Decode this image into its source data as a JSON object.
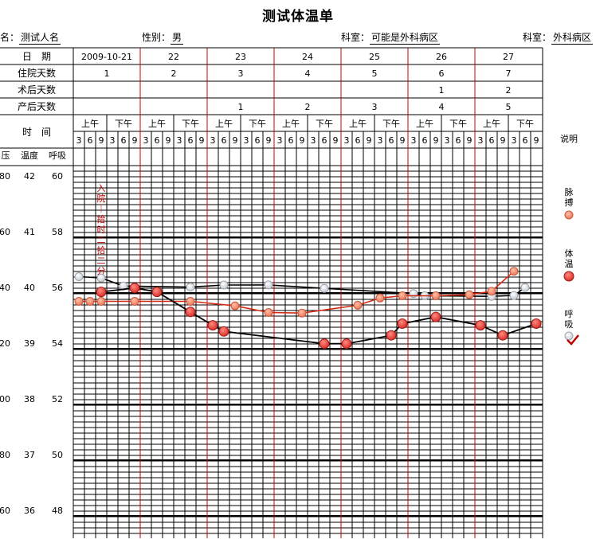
{
  "title": "测试体温单",
  "patient": {
    "name_label": "名：",
    "name_value": "测试人名",
    "gender_label": "性别：",
    "gender_value": "男",
    "dept1_label": "科室：",
    "dept1_value": "可能是外科病区",
    "dept2_label": "科室：",
    "dept2_value": "外科病区"
  },
  "header_rows": {
    "date_label": "日　期",
    "days_in_label": "住院天数",
    "post_op_label": "术后天数",
    "postpartum_label": "产后天数",
    "time_label": "时　间",
    "am": "上午",
    "pm": "下午",
    "hours": [
      "3",
      "6",
      "9",
      "3",
      "6",
      "9"
    ]
  },
  "days": [
    {
      "date": "2009-10-21",
      "in_days": "1",
      "post_op": "",
      "postpartum": ""
    },
    {
      "date": "22",
      "in_days": "2",
      "post_op": "",
      "postpartum": ""
    },
    {
      "date": "23",
      "in_days": "3",
      "post_op": "",
      "postpartum": "1"
    },
    {
      "date": "24",
      "in_days": "4",
      "post_op": "",
      "postpartum": "2"
    },
    {
      "date": "25",
      "in_days": "5",
      "post_op": "",
      "postpartum": "3"
    },
    {
      "date": "26",
      "in_days": "6",
      "post_op": "1",
      "postpartum": "4"
    },
    {
      "date": "27",
      "in_days": "7",
      "post_op": "2",
      "postpartum": "5"
    }
  ],
  "axis_headers": {
    "bp": "压",
    "temp": "温度",
    "resp": "呼吸"
  },
  "axis_ticks": [
    {
      "bp": "80",
      "temp": "42",
      "resp": "60"
    },
    {
      "bp": "60",
      "temp": "41",
      "resp": "58"
    },
    {
      "bp": "40",
      "temp": "40",
      "resp": "56"
    },
    {
      "bp": "20",
      "temp": "39",
      "resp": "54"
    },
    {
      "bp": "00",
      "temp": "38",
      "resp": "52"
    },
    {
      "bp": "80",
      "temp": "37",
      "resp": "50"
    },
    {
      "bp": "60",
      "temp": "36",
      "resp": "48"
    }
  ],
  "admission_note": "入院｜拾时二拾二分",
  "legend": {
    "title": "说明",
    "pulse": "脉搏",
    "temp": "体温",
    "resp": "呼吸"
  },
  "colors": {
    "grid": "#000000",
    "day_divider": "#cc0000",
    "pulse": "#e8785a",
    "pulse_line": "#d42a14",
    "temp": "#d8302a",
    "temp_line": "#000000",
    "resp": "#e4e8ec",
    "resp_line": "#000000",
    "note": "#c00000"
  },
  "chart_data": {
    "type": "line",
    "title": "测试体温单",
    "x_unit": "4-hour slot index (0 = 2009-10-21 03:00)",
    "ylim_temp": [
      35.5,
      42.5
    ],
    "ylim_resp": [
      47,
      61
    ],
    "series": [
      {
        "name": "脉搏",
        "values_on_temp_scale": [
          {
            "x": 0,
            "y": 39.85
          },
          {
            "x": 1,
            "y": 39.85
          },
          {
            "x": 2,
            "y": 39.85
          },
          {
            "x": 5,
            "y": 39.85
          },
          {
            "x": 10,
            "y": 39.85
          },
          {
            "x": 14,
            "y": 39.77
          },
          {
            "x": 17,
            "y": 39.65
          },
          {
            "x": 20,
            "y": 39.64
          },
          {
            "x": 25,
            "y": 39.78
          },
          {
            "x": 27,
            "y": 39.91
          },
          {
            "x": 29,
            "y": 39.95
          },
          {
            "x": 32,
            "y": 39.95
          },
          {
            "x": 35,
            "y": 39.97
          },
          {
            "x": 37,
            "y": 40.03
          },
          {
            "x": 39,
            "y": 40.39
          }
        ]
      },
      {
        "name": "体温",
        "values": [
          {
            "x": 2,
            "y": 40.02
          },
          {
            "x": 5,
            "y": 40.09
          },
          {
            "x": 7,
            "y": 40.02
          },
          {
            "x": 10,
            "y": 39.66
          },
          {
            "x": 12,
            "y": 39.42
          },
          {
            "x": 13,
            "y": 39.31
          },
          {
            "x": 22,
            "y": 39.09
          },
          {
            "x": 24,
            "y": 39.09
          },
          {
            "x": 28,
            "y": 39.24
          },
          {
            "x": 29,
            "y": 39.45
          },
          {
            "x": 32,
            "y": 39.57
          },
          {
            "x": 36,
            "y": 39.42
          },
          {
            "x": 38,
            "y": 39.24
          },
          {
            "x": 41,
            "y": 39.45
          }
        ]
      },
      {
        "name": "呼吸",
        "values": [
          {
            "x": 0,
            "y": 53.17
          },
          {
            "x": 2,
            "y": 53.08
          },
          {
            "x": 4,
            "y": 52.5
          },
          {
            "x": 10,
            "y": 52.42
          },
          {
            "x": 13,
            "y": 52.57
          },
          {
            "x": 17,
            "y": 52.58
          },
          {
            "x": 22,
            "y": 52.33
          },
          {
            "x": 30,
            "y": 51.96
          },
          {
            "x": 31,
            "y": 51.8
          },
          {
            "x": 37,
            "y": 51.76
          },
          {
            "x": 39,
            "y": 51.82
          },
          {
            "x": 40,
            "y": 52.39
          }
        ]
      }
    ]
  }
}
